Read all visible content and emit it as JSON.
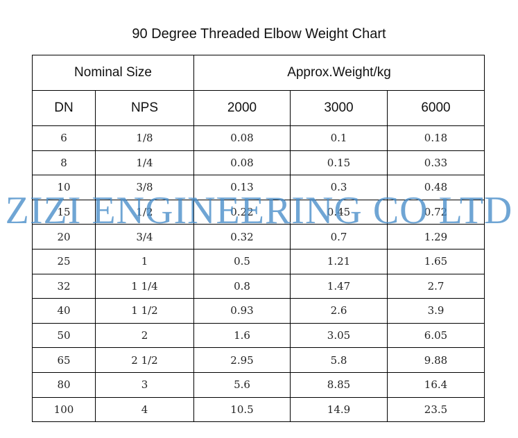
{
  "title": "90 Degree Threaded Elbow Weight Chart",
  "header": {
    "nominal_size": "Nominal Size",
    "approx_weight": "Approx.Weight/kg",
    "dn": "DN",
    "nps": "NPS",
    "class_2000": "2000",
    "class_3000": "3000",
    "class_6000": "6000"
  },
  "rows": [
    {
      "dn": "6",
      "nps": "1/8",
      "w2000": "0.08",
      "w3000": "0.1",
      "w6000": "0.18"
    },
    {
      "dn": "8",
      "nps": "1/4",
      "w2000": "0.08",
      "w3000": "0.15",
      "w6000": "0.33"
    },
    {
      "dn": "10",
      "nps": "3/8",
      "w2000": "0.13",
      "w3000": "0.3",
      "w6000": "0.48"
    },
    {
      "dn": "15",
      "nps": "1/2",
      "w2000": "0.22",
      "w3000": "0.45",
      "w6000": "0.72"
    },
    {
      "dn": "20",
      "nps": "3/4",
      "w2000": "0.32",
      "w3000": "0.7",
      "w6000": "1.29"
    },
    {
      "dn": "25",
      "nps": "1",
      "w2000": "0.5",
      "w3000": "1.21",
      "w6000": "1.65"
    },
    {
      "dn": "32",
      "nps": "1 1/4",
      "w2000": "0.8",
      "w3000": "1.47",
      "w6000": "2.7"
    },
    {
      "dn": "40",
      "nps": "1 1/2",
      "w2000": "0.93",
      "w3000": "2.6",
      "w6000": "3.9"
    },
    {
      "dn": "50",
      "nps": "2",
      "w2000": "1.6",
      "w3000": "3.05",
      "w6000": "6.05"
    },
    {
      "dn": "65",
      "nps": "2 1/2",
      "w2000": "2.95",
      "w3000": "5.8",
      "w6000": "9.88"
    },
    {
      "dn": "80",
      "nps": "3",
      "w2000": "5.6",
      "w3000": "8.85",
      "w6000": "16.4"
    },
    {
      "dn": "100",
      "nps": "4",
      "w2000": "10.5",
      "w3000": "14.9",
      "w6000": "23.5"
    }
  ],
  "watermark": "ZIZI ENGINEERING CO LTD",
  "colors": {
    "watermark": "#468cc8",
    "border": "#000000",
    "background": "#ffffff"
  }
}
